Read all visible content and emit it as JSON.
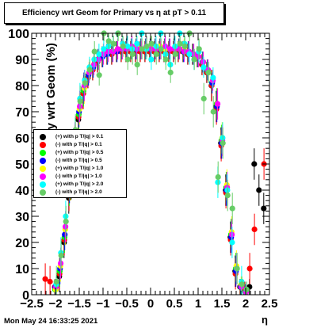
{
  "title": "Efficiency wrt Geom for Primary vs   η at pT > 0.11",
  "timestamp": "Mon May 24 16:33:25 2021",
  "chart_data": {
    "type": "scatter",
    "title": "Efficiency wrt Geom for Primary vs   η at pT > 0.11",
    "xlabel": "η",
    "ylabel": "Efficiency wrt Geom (%)",
    "xlim": [
      -2.5,
      2.5
    ],
    "ylim": [
      0,
      100
    ],
    "x_ticks": [
      "−2.5",
      "−2",
      "−1.5",
      "−1",
      "−0.5",
      "0",
      "0.5",
      "1",
      "1.5",
      "2",
      "2.5"
    ],
    "y_ticks": [
      "0",
      "10",
      "20",
      "30",
      "40",
      "50",
      "60",
      "70",
      "80",
      "90",
      "100"
    ],
    "grid": false,
    "legend_position": "left-middle",
    "x": [
      -2.2,
      -2.1,
      -2.0,
      -1.9,
      -1.8,
      -1.7,
      -1.6,
      -1.5,
      -1.4,
      -1.3,
      -1.2,
      -1.1,
      -1.0,
      -0.9,
      -0.8,
      -0.7,
      -0.6,
      -0.5,
      -0.4,
      -0.3,
      -0.2,
      -0.1,
      0.0,
      0.1,
      0.2,
      0.3,
      0.4,
      0.5,
      0.6,
      0.7,
      0.8,
      0.9,
      1.0,
      1.1,
      1.2,
      1.3,
      1.4,
      1.5,
      1.6,
      1.7,
      1.8,
      1.9,
      2.0,
      2.1,
      2.2,
      2.3,
      2.4
    ],
    "series": [
      {
        "name": "(+) with p T/|q| > 0.1",
        "color": "#000000",
        "values": [
          null,
          null,
          null,
          7,
          20,
          37,
          55,
          67,
          77,
          83,
          86,
          89,
          91,
          92,
          92,
          93,
          93,
          93,
          93,
          93,
          93,
          93,
          93,
          93,
          93,
          93,
          93,
          93,
          93,
          93,
          92,
          92,
          91,
          88,
          85,
          80,
          72,
          58,
          40,
          22,
          9,
          3,
          2,
          3,
          50,
          40,
          33
        ]
      },
      {
        "name": "(-) with p T/|q| > 0.1",
        "color": "#ff0000",
        "values": [
          6,
          5,
          3,
          8,
          21,
          38,
          56,
          68,
          77,
          83,
          86,
          89,
          91,
          92,
          92,
          93,
          93,
          93,
          93,
          93,
          93,
          93,
          93,
          93,
          93,
          93,
          93,
          93,
          93,
          93,
          92,
          92,
          91,
          88,
          85,
          80,
          71,
          57,
          39,
          21,
          8,
          3,
          2,
          10,
          25,
          null,
          50
        ]
      },
      {
        "name": "(+) with p T/|q| > 0.5",
        "color": "#00ff00",
        "values": [
          null,
          null,
          2,
          9,
          22,
          40,
          57,
          69,
          78,
          84,
          87,
          90,
          91,
          92,
          93,
          93,
          94,
          94,
          94,
          94,
          94,
          94,
          94,
          94,
          94,
          94,
          94,
          94,
          94,
          93,
          93,
          92,
          91,
          89,
          86,
          81,
          73,
          59,
          41,
          23,
          10,
          3,
          1,
          null,
          null,
          null,
          null
        ]
      },
      {
        "name": "(-) with p T/|q| > 0.5",
        "color": "#0000ff",
        "values": [
          null,
          null,
          3,
          10,
          23,
          41,
          58,
          70,
          79,
          84,
          87,
          90,
          91,
          92,
          93,
          93,
          94,
          94,
          94,
          94,
          94,
          94,
          94,
          94,
          94,
          94,
          94,
          94,
          94,
          93,
          93,
          92,
          91,
          89,
          86,
          81,
          72,
          58,
          40,
          22,
          9,
          3,
          1,
          null,
          null,
          null,
          null
        ]
      },
      {
        "name": "(+) with p T/|q| > 1.0",
        "color": "#ffff00",
        "values": [
          null,
          null,
          2,
          11,
          25,
          42,
          59,
          71,
          79,
          85,
          88,
          90,
          92,
          93,
          93,
          94,
          94,
          95,
          94,
          95,
          94,
          94,
          95,
          94,
          95,
          94,
          94,
          94,
          94,
          94,
          93,
          92,
          91,
          89,
          86,
          82,
          73,
          60,
          42,
          24,
          11,
          4,
          1,
          null,
          null,
          null,
          null
        ]
      },
      {
        "name": "(-) with p T/|q| > 1.0",
        "color": "#ff00ff",
        "values": [
          null,
          null,
          3,
          12,
          26,
          43,
          60,
          72,
          80,
          85,
          88,
          90,
          92,
          93,
          93,
          94,
          94,
          94,
          95,
          94,
          94,
          95,
          94,
          94,
          94,
          95,
          94,
          94,
          94,
          93,
          93,
          92,
          91,
          89,
          86,
          82,
          73,
          59,
          41,
          23,
          10,
          3,
          1,
          null,
          null,
          null,
          null
        ]
      },
      {
        "name": "(+) with p T/|q| > 2.0",
        "color": "#00ffff",
        "values": [
          null,
          null,
          4,
          16,
          30,
          45,
          62,
          75,
          82,
          87,
          90,
          92,
          94,
          95,
          96,
          100,
          96,
          95,
          94,
          96,
          100,
          94,
          90,
          95,
          100,
          92,
          88,
          95,
          100,
          96,
          92,
          90,
          93,
          87,
          85,
          83,
          43,
          60,
          40,
          20,
          10,
          5,
          2,
          null,
          null,
          null,
          null
        ]
      },
      {
        "name": "(-) with p T/|q| > 2.0",
        "color": "#66cc66",
        "values": [
          null,
          null,
          5,
          15,
          28,
          46,
          63,
          74,
          81,
          86,
          93,
          84,
          100,
          97,
          96,
          100,
          95,
          90,
          92,
          88,
          94,
          95,
          96,
          92,
          94,
          90,
          85,
          92,
          96,
          95,
          100,
          90,
          94,
          75,
          85,
          70,
          45,
          58,
          38,
          33,
          10,
          4,
          2,
          null,
          null,
          null,
          null
        ]
      }
    ]
  }
}
